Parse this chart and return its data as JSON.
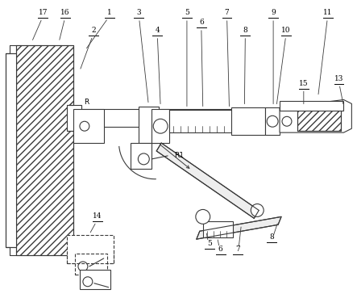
{
  "fig_width": 4.43,
  "fig_height": 3.69,
  "dpi": 100,
  "bg_color": "#ffffff",
  "line_color": "#3a3a3a"
}
